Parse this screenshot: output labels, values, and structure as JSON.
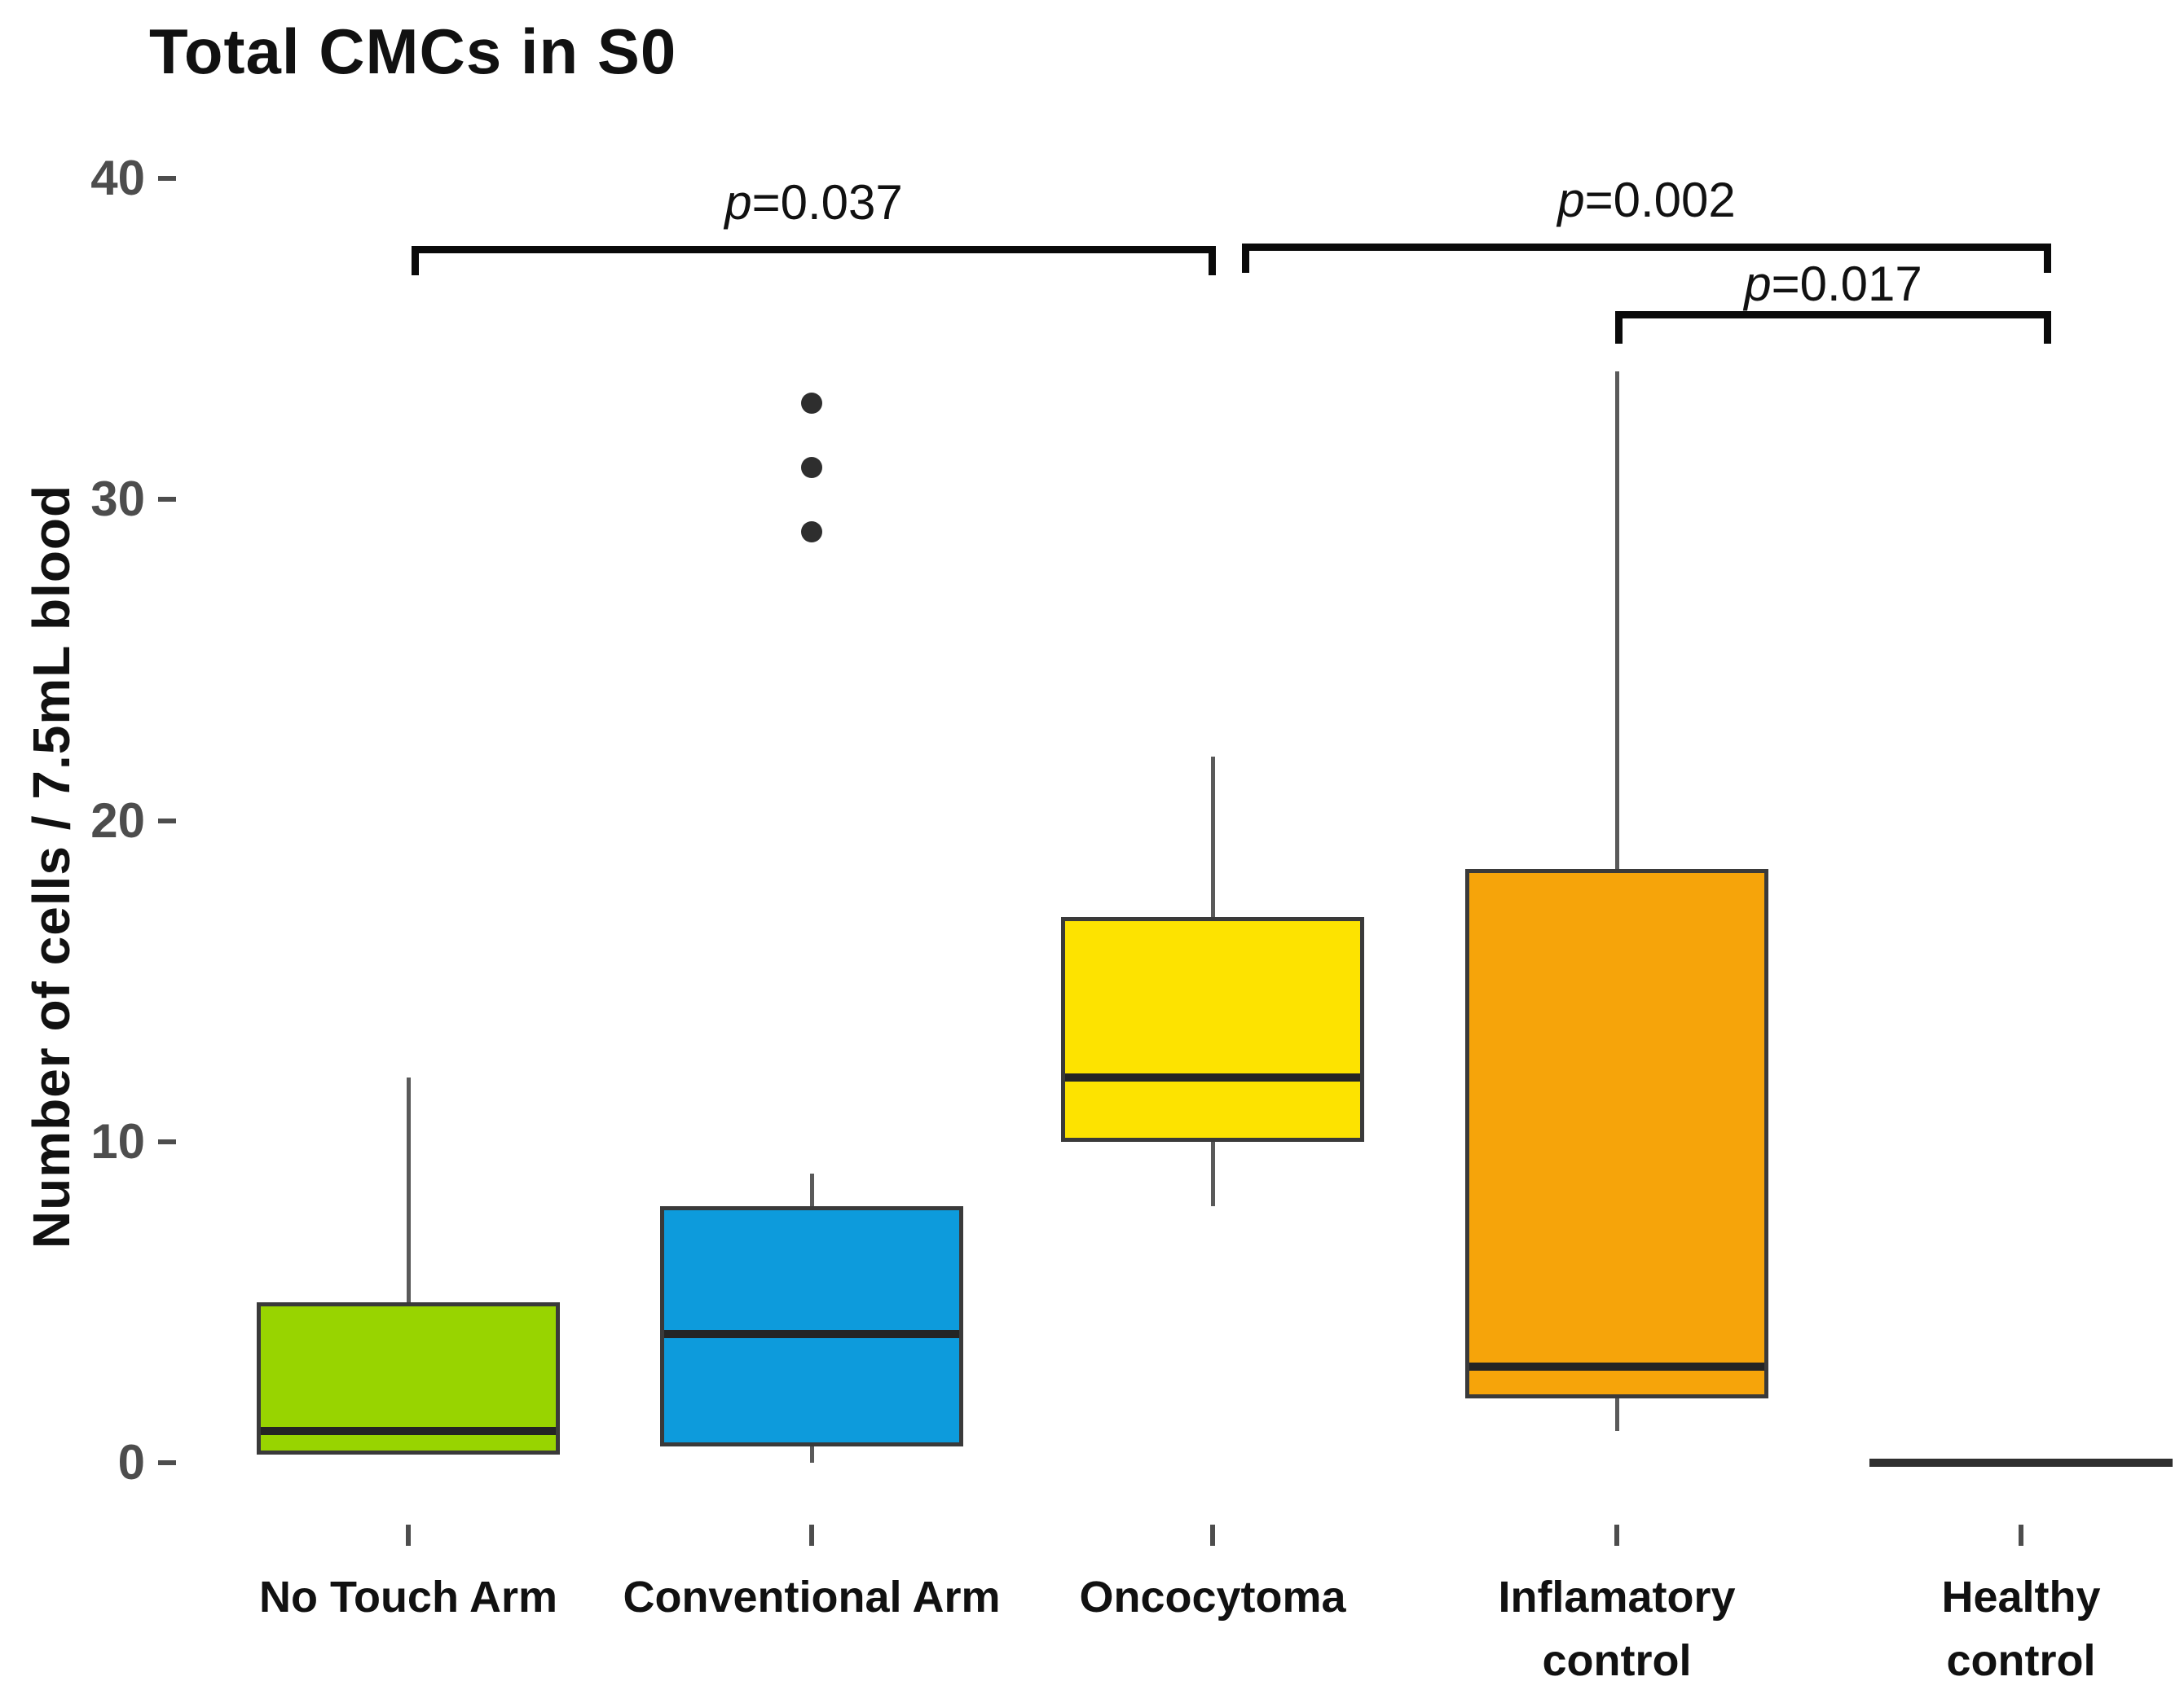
{
  "title": "Total CMCs in S0",
  "y_axis": {
    "label": "Number of cells / 7.5mL blood",
    "ticks": [
      0,
      10,
      20,
      30,
      40
    ]
  },
  "chart_data": {
    "type": "boxplot",
    "title": "Total CMCs in S0",
    "xlabel": "",
    "ylabel": "Number of cells / 7.5mL blood",
    "ylim": [
      0,
      40
    ],
    "y_ticks": [
      0,
      10,
      20,
      30,
      40
    ],
    "grid": false,
    "legend": "none",
    "categories": [
      "No Touch Arm",
      "Conventional Arm",
      "Oncocytoma",
      "Inflamatory\ncontrol",
      "Healthy\ncontrol"
    ],
    "series": [
      {
        "name": "No Touch Arm",
        "color": "#98d400",
        "whisker_low": null,
        "q1": 0.25,
        "median": 1,
        "q3": 5,
        "whisker_high": 12,
        "outliers": []
      },
      {
        "name": "Conventional Arm",
        "color": "#0d9bdc",
        "whisker_low": 0,
        "q1": 0.5,
        "median": 4,
        "q3": 8,
        "whisker_high": 9,
        "outliers": [
          29,
          31,
          33
        ]
      },
      {
        "name": "Oncocytoma",
        "color": "#fde300",
        "whisker_low": 8,
        "q1": 10,
        "median": 12,
        "q3": 17,
        "whisker_high": 22,
        "outliers": []
      },
      {
        "name": "Inflamatory control",
        "color": "#f6a40a",
        "whisker_low": 1,
        "q1": 2,
        "median": 3,
        "q3": 18.5,
        "whisker_high": 34,
        "outliers": []
      },
      {
        "name": "Healthy control",
        "color": "#2f2f2f",
        "flat_line": true,
        "whisker_low": 0,
        "q1": 0,
        "median": 0,
        "q3": 0,
        "whisker_high": 0,
        "outliers": []
      }
    ],
    "significance_brackets": [
      {
        "group_a": "No Touch Arm",
        "group_b": "Oncocytoma",
        "p_symbol": "p",
        "p_value_text": "=0.037"
      },
      {
        "group_a": "Oncocytoma",
        "group_b": "Healthy control",
        "p_symbol": "p",
        "p_value_text": "=0.002"
      },
      {
        "group_a": "Inflamatory control",
        "group_b": "Healthy control",
        "p_symbol": "p",
        "p_value_text": "=0.017"
      }
    ]
  }
}
